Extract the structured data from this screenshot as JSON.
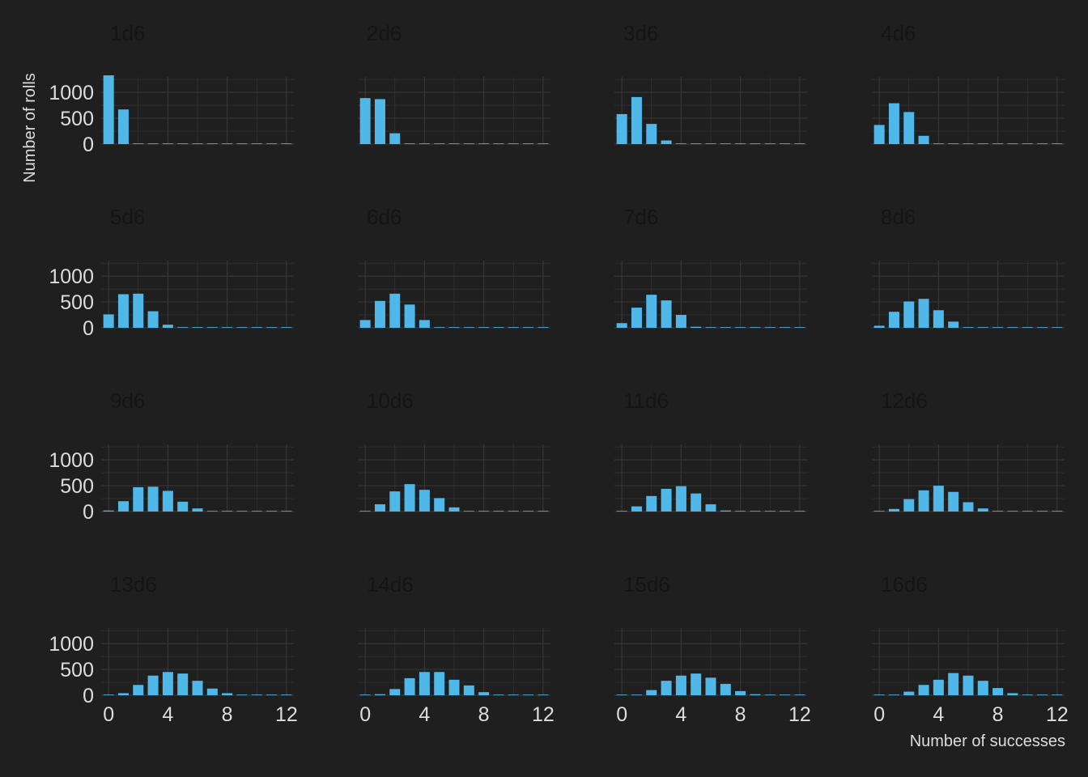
{
  "chart_data": {
    "type": "bar",
    "xlabel": "Number of successes",
    "ylabel": "Number of rolls",
    "xlim": [
      -0.5,
      12.5
    ],
    "ylim": [
      0,
      1300
    ],
    "x_ticks": [
      0,
      4,
      8,
      12
    ],
    "y_ticks": [
      0,
      500,
      1000
    ],
    "grid": true,
    "colors": {
      "background": "#1f1f1f",
      "bar": "#4fb8e8",
      "grid": "#363636",
      "axis_text": "#dddddd",
      "facet_title": "#151515"
    },
    "x": [
      0,
      1,
      2,
      3,
      4,
      5,
      6,
      7,
      8,
      9,
      10,
      11,
      12
    ],
    "panels": [
      {
        "title": "1d6",
        "values": [
          1330,
          670,
          0,
          0,
          0,
          0,
          0,
          0,
          0,
          0,
          0,
          0,
          0
        ]
      },
      {
        "title": "2d6",
        "values": [
          890,
          870,
          210,
          0,
          0,
          0,
          0,
          0,
          0,
          0,
          0,
          0,
          0
        ]
      },
      {
        "title": "3d6",
        "values": [
          580,
          910,
          390,
          70,
          0,
          0,
          0,
          0,
          0,
          0,
          0,
          0,
          0
        ]
      },
      {
        "title": "4d6",
        "values": [
          370,
          790,
          620,
          160,
          0,
          0,
          0,
          0,
          0,
          0,
          0,
          0,
          0
        ]
      },
      {
        "title": "5d6",
        "values": [
          260,
          650,
          660,
          320,
          60,
          0,
          0,
          0,
          0,
          0,
          0,
          0,
          0
        ]
      },
      {
        "title": "6d6",
        "values": [
          150,
          520,
          660,
          450,
          150,
          0,
          0,
          0,
          0,
          0,
          0,
          0,
          0
        ]
      },
      {
        "title": "7d6",
        "values": [
          90,
          390,
          640,
          530,
          250,
          20,
          0,
          0,
          0,
          0,
          0,
          0,
          0
        ]
      },
      {
        "title": "8d6",
        "values": [
          40,
          310,
          510,
          560,
          340,
          120,
          0,
          0,
          0,
          0,
          0,
          0,
          0
        ]
      },
      {
        "title": "9d6",
        "values": [
          20,
          200,
          470,
          480,
          400,
          190,
          60,
          0,
          0,
          0,
          0,
          0,
          0
        ]
      },
      {
        "title": "10d6",
        "values": [
          10,
          140,
          390,
          530,
          420,
          260,
          80,
          0,
          0,
          0,
          0,
          0,
          0
        ]
      },
      {
        "title": "11d6",
        "values": [
          0,
          100,
          300,
          440,
          490,
          350,
          140,
          20,
          0,
          0,
          0,
          0,
          0
        ]
      },
      {
        "title": "12d6",
        "values": [
          0,
          50,
          240,
          410,
          500,
          380,
          180,
          60,
          0,
          0,
          0,
          0,
          0
        ]
      },
      {
        "title": "13d6",
        "values": [
          0,
          40,
          200,
          380,
          450,
          420,
          280,
          130,
          40,
          0,
          0,
          0,
          0
        ]
      },
      {
        "title": "14d6",
        "values": [
          0,
          20,
          120,
          330,
          450,
          450,
          300,
          190,
          60,
          0,
          0,
          0,
          0
        ]
      },
      {
        "title": "15d6",
        "values": [
          0,
          0,
          100,
          280,
          380,
          420,
          340,
          220,
          80,
          20,
          0,
          0,
          0
        ]
      },
      {
        "title": "16d6",
        "values": [
          0,
          0,
          70,
          200,
          300,
          430,
          380,
          280,
          140,
          40,
          0,
          0,
          0
        ]
      }
    ]
  }
}
